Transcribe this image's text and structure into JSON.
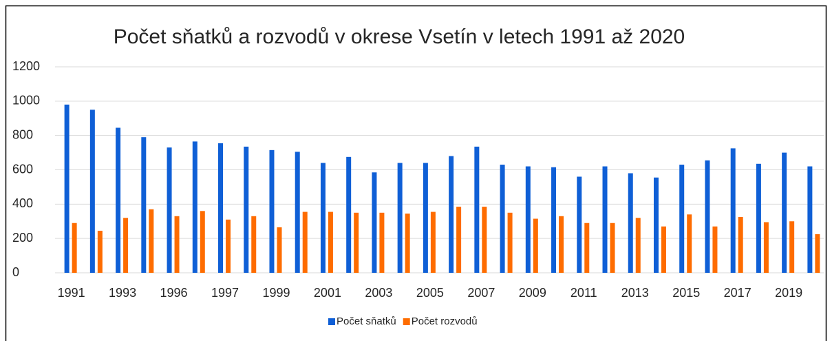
{
  "chart_data": {
    "type": "bar",
    "title": "Počet sňatků a rozvodů v okrese Vsetín v letech 1991 až 2020",
    "categories": [
      "1991",
      null,
      "1993",
      null,
      "1996",
      null,
      "1997",
      null,
      "1999",
      null,
      "2001",
      null,
      "2003",
      null,
      "2005",
      null,
      "2007",
      null,
      "2009",
      null,
      "2011",
      null,
      "2013",
      null,
      "2015",
      null,
      "2017",
      null,
      "2019",
      null
    ],
    "series": [
      {
        "name": "Počet sňatků",
        "color": "#0f5fd6",
        "values": [
          980,
          950,
          845,
          790,
          730,
          765,
          755,
          735,
          715,
          705,
          640,
          675,
          585,
          640,
          640,
          680,
          735,
          630,
          620,
          615,
          560,
          620,
          580,
          555,
          630,
          655,
          725,
          635,
          700,
          620
        ]
      },
      {
        "name": "Počet rozvodů",
        "color": "#fe6c00",
        "values": [
          290,
          245,
          320,
          370,
          330,
          360,
          310,
          330,
          265,
          355,
          355,
          350,
          350,
          345,
          355,
          385,
          385,
          350,
          315,
          330,
          290,
          290,
          320,
          270,
          340,
          270,
          325,
          295,
          300,
          225
        ]
      }
    ],
    "ylim": [
      0,
      1200
    ],
    "yticks": [
      0,
      200,
      400,
      600,
      800,
      1000,
      1200
    ],
    "grid": true,
    "legend": "bottom"
  }
}
